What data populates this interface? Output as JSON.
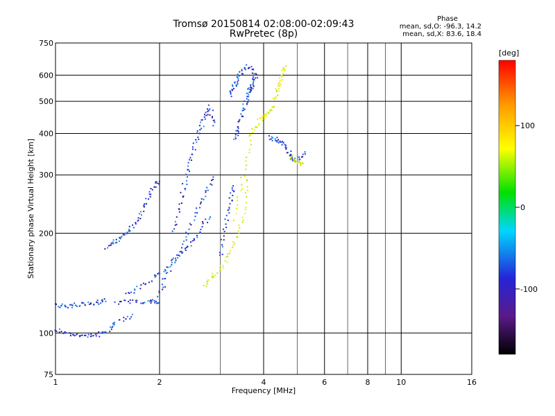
{
  "header": {
    "title": "Tromsø 20150814 02:08:00-02:09:43",
    "subtitle": "RwPretec (8p)"
  },
  "phase_legend": {
    "title": "Phase",
    "line_o": "mean, sd,O: -96.3, 14.2",
    "line_x": "mean, sd,X:  83.6, 18.4"
  },
  "colorbar": {
    "unit": "[deg]",
    "ticks": [
      {
        "value": 100,
        "label": "100"
      },
      {
        "value": 0,
        "label": "0"
      },
      {
        "value": -100,
        "label": "-100"
      }
    ],
    "range": [
      -180,
      180
    ]
  },
  "chart_data": {
    "type": "scatter",
    "title": "Tromsø 20150814 02:08:00-02:09:43",
    "subtitle": "RwPretec (8p)",
    "xlabel": "Frequency [MHz]",
    "ylabel": "Stationary phase Virtual Height [km]",
    "x_scale": "log",
    "y_scale": "log",
    "xlim": [
      1,
      16
    ],
    "ylim": [
      75,
      750
    ],
    "x_ticks": [
      1,
      2,
      4,
      6,
      8,
      10,
      16
    ],
    "x_tick_labels": [
      "1",
      "2",
      "4",
      "6",
      "8",
      "10",
      "16"
    ],
    "y_ticks": [
      75,
      100,
      200,
      300,
      400,
      500,
      600,
      750
    ],
    "y_tick_labels": [
      "75",
      "100",
      "200",
      "300",
      "400",
      "500",
      "600",
      "750"
    ],
    "x_gridlines": [
      2,
      4,
      6,
      8,
      10
    ],
    "x_minor_gridlines": [
      3,
      5,
      7,
      9
    ],
    "y_gridlines": [
      100,
      200,
      300,
      400,
      500,
      600
    ],
    "grid": true,
    "series": [
      {
        "name": "O",
        "phase_mean": -96.3,
        "phase_sd": 14.2,
        "traces": [
          {
            "f": [
              1.0,
              1.1,
              1.2,
              1.3,
              1.4
            ],
            "h": [
              121,
              121,
              122,
              123,
              126
            ]
          },
          {
            "f": [
              1.0,
              1.1,
              1.2,
              1.3,
              1.4,
              1.5,
              1.7
            ],
            "h": [
              102,
              100,
              98,
              98,
              101,
              108,
              113
            ]
          },
          {
            "f": [
              1.5,
              1.7,
              1.9,
              2.0
            ],
            "h": [
              124,
              124,
              125,
              124
            ]
          },
          {
            "f": [
              1.4,
              1.5,
              1.6,
              1.7,
              1.8,
              1.9,
              2.0
            ],
            "h": [
              180,
              190,
              200,
              215,
              240,
              270,
              290
            ]
          },
          {
            "f": [
              1.6,
              1.8,
              2.0,
              2.2,
              2.4,
              2.6,
              2.8
            ],
            "h": [
              130,
              140,
              150,
              165,
              180,
              200,
              230
            ]
          },
          {
            "f": [
              2.0,
              2.1,
              2.3,
              2.5,
              2.7,
              2.9
            ],
            "h": [
              130,
              150,
              180,
              220,
              260,
              300
            ]
          },
          {
            "f": [
              2.2,
              2.3,
              2.4,
              2.5,
              2.6,
              2.7,
              2.8,
              2.9
            ],
            "h": [
              200,
              250,
              300,
              350,
              400,
              450,
              480,
              420
            ]
          },
          {
            "f": [
              3.0,
              3.1,
              3.2,
              3.3
            ],
            "h": [
              170,
              210,
              250,
              280
            ]
          },
          {
            "f": [
              3.3,
              3.4,
              3.5,
              3.6,
              3.7
            ],
            "h": [
              380,
              420,
              470,
              520,
              560
            ]
          },
          {
            "f": [
              3.2,
              3.3,
              3.4,
              3.6,
              3.8,
              3.7,
              3.6
            ],
            "h": [
              520,
              560,
              600,
              640,
              600,
              560,
              520
            ]
          },
          {
            "f": [
              4.2,
              4.4,
              4.6,
              4.8,
              5.0,
              5.3
            ],
            "h": [
              390,
              380,
              370,
              340,
              330,
              350
            ]
          }
        ]
      },
      {
        "name": "X",
        "phase_mean": 83.6,
        "phase_sd": 18.4,
        "traces": [
          {
            "f": [
              2.7,
              2.9,
              3.1,
              3.3,
              3.5,
              3.6
            ],
            "h": [
              140,
              150,
              165,
              190,
              230,
              300
            ]
          },
          {
            "f": [
              3.3,
              3.5,
              3.7,
              3.9,
              4.1,
              4.3
            ],
            "h": [
              220,
              300,
              400,
              440,
              460,
              480
            ]
          },
          {
            "f": [
              4.3,
              4.4,
              4.5,
              4.6
            ],
            "h": [
              500,
              550,
              600,
              640
            ]
          },
          {
            "f": [
              4.8,
              5.0,
              5.2
            ],
            "h": [
              340,
              330,
              320
            ]
          }
        ]
      }
    ],
    "colorbar_label": "[deg]",
    "colorbar_range": [
      -180,
      180
    ]
  }
}
